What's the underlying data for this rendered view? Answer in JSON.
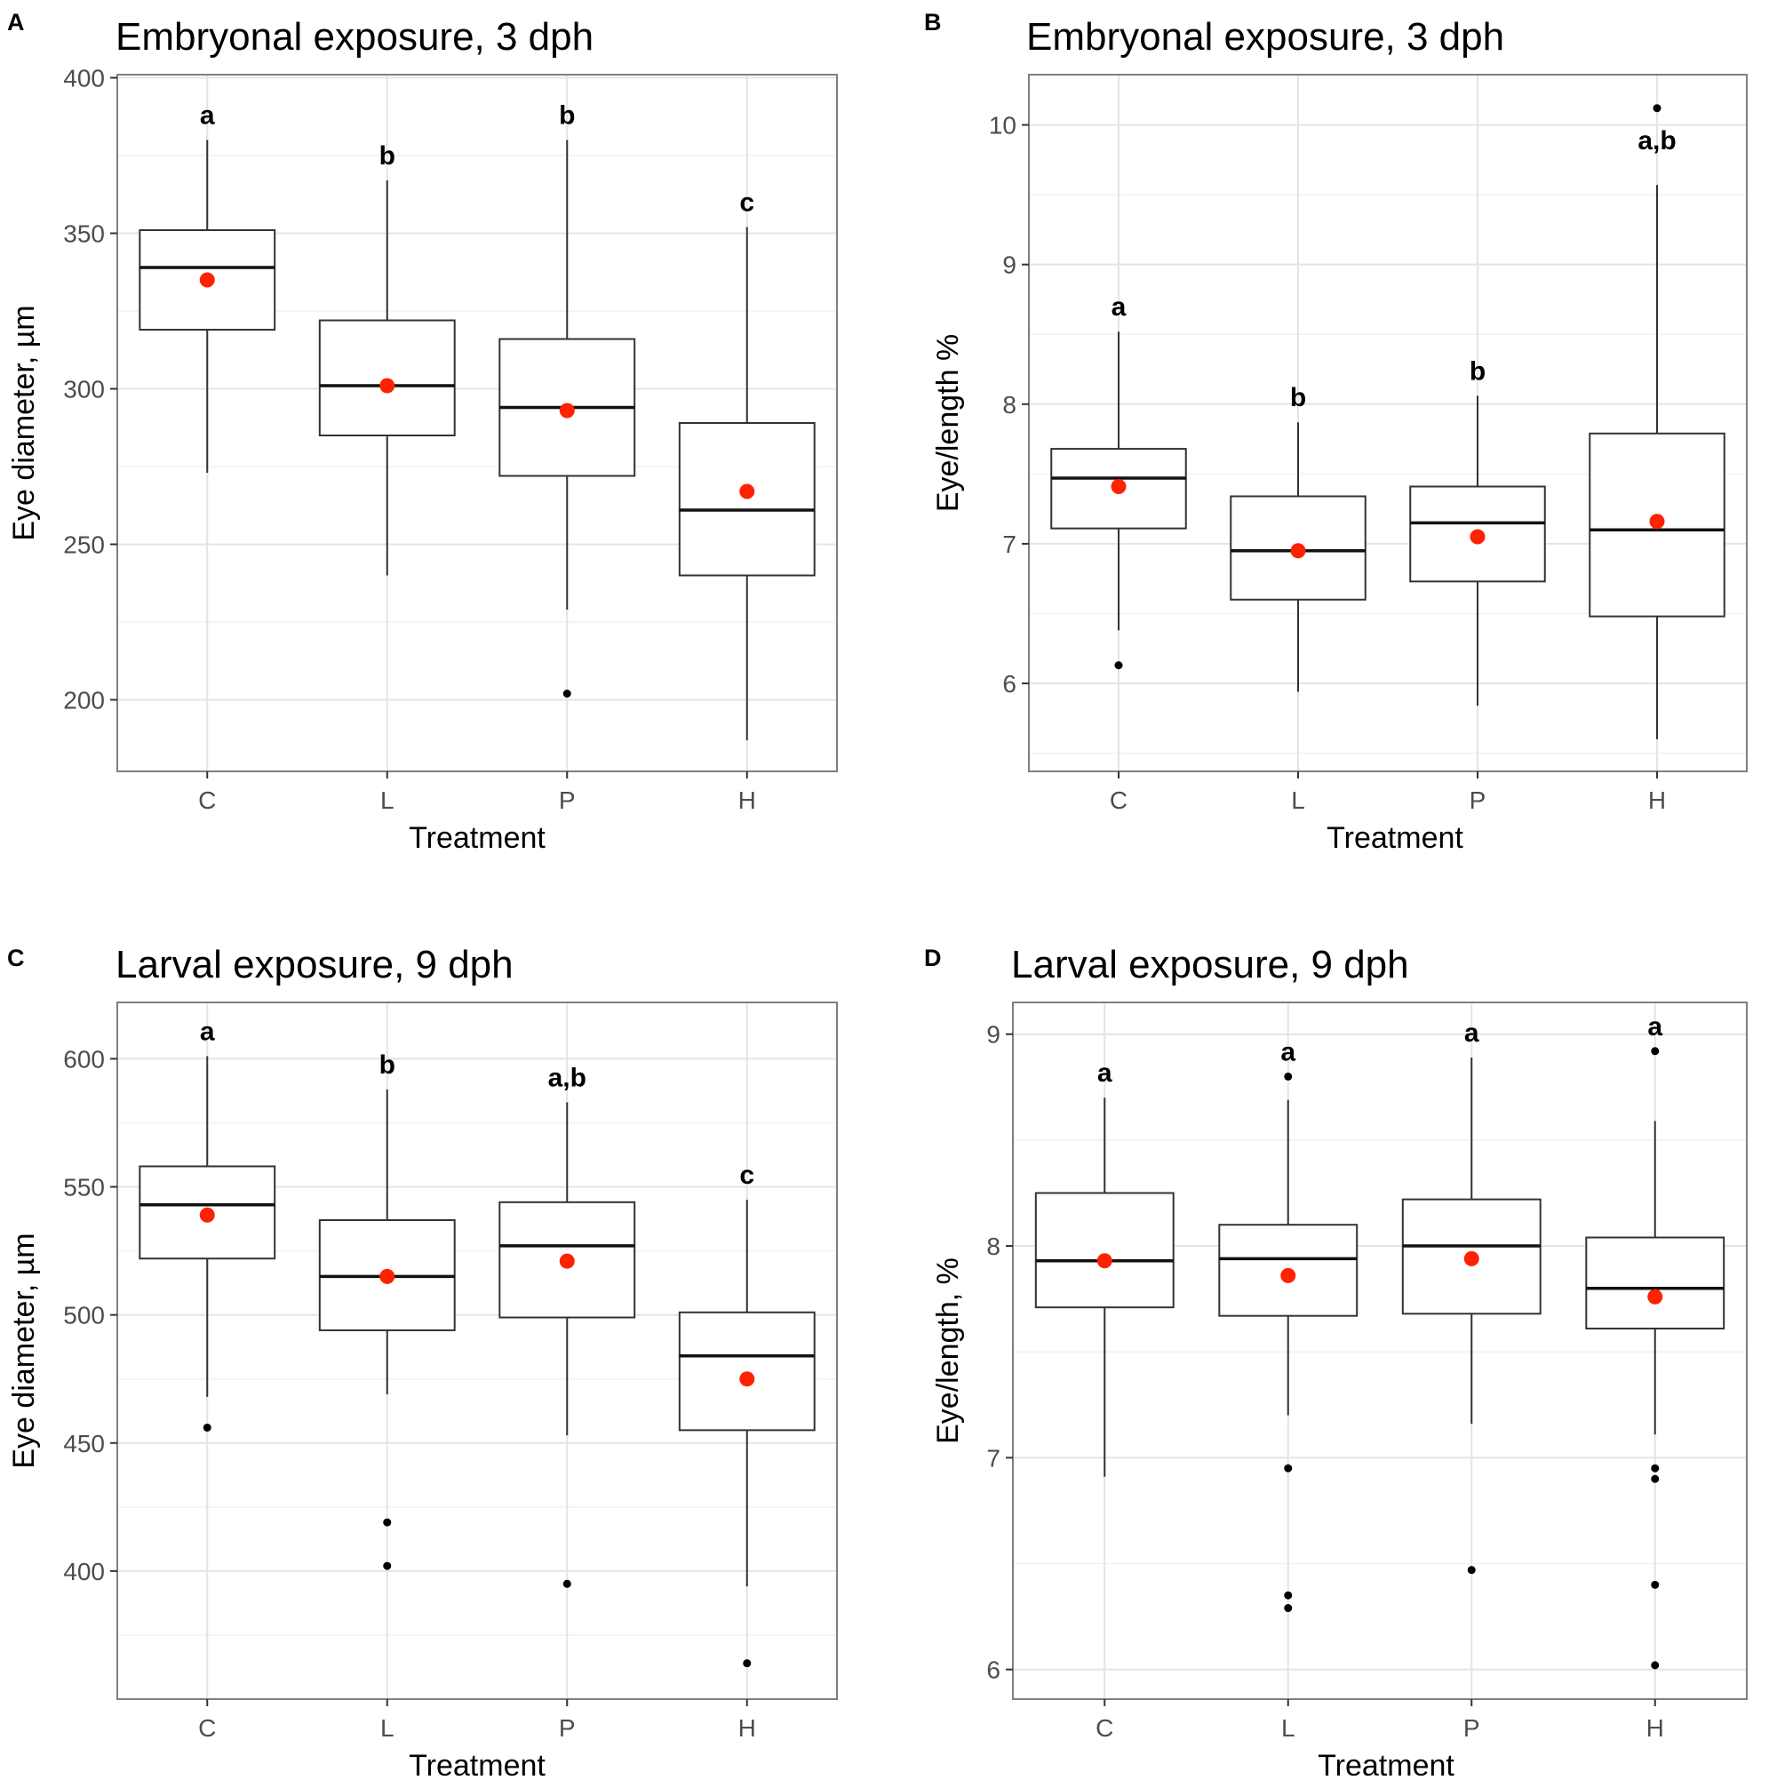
{
  "chart_data": [
    {
      "type": "box",
      "panel": "A",
      "title": "Embryonal exposure, 3 dph",
      "xlabel": "Treatment",
      "ylabel": "Eye diameter, µm",
      "categories": [
        "C",
        "L",
        "P",
        "H"
      ],
      "ylim": [
        177,
        401
      ],
      "yticks": [
        200,
        250,
        300,
        350,
        400
      ],
      "grid": true,
      "series": [
        {
          "name": "C",
          "whisker_low": 273,
          "q1": 319,
          "median": 339,
          "q3": 351,
          "whisker_high": 380,
          "mean": 335,
          "outliers": [],
          "letter": "a"
        },
        {
          "name": "L",
          "whisker_low": 240,
          "q1": 285,
          "median": 301,
          "q3": 322,
          "whisker_high": 367,
          "mean": 301,
          "outliers": [],
          "letter": "b"
        },
        {
          "name": "P",
          "whisker_low": 229,
          "q1": 272,
          "median": 294,
          "q3": 316,
          "whisker_high": 380,
          "mean": 293,
          "outliers": [
            202
          ],
          "letter": "b"
        },
        {
          "name": "H",
          "whisker_low": 187,
          "q1": 240,
          "median": 261,
          "q3": 289,
          "whisker_high": 352,
          "mean": 267,
          "outliers": [],
          "letter": "c"
        }
      ]
    },
    {
      "type": "box",
      "panel": "B",
      "title": "Embryonal exposure, 3 dph",
      "xlabel": "Treatment",
      "ylabel": "Eye/length %",
      "categories": [
        "C",
        "L",
        "P",
        "H"
      ],
      "ylim": [
        5.37,
        10.36
      ],
      "yticks": [
        6,
        7,
        8,
        9,
        10
      ],
      "grid": true,
      "series": [
        {
          "name": "C",
          "whisker_low": 6.38,
          "q1": 7.11,
          "median": 7.47,
          "q3": 7.68,
          "whisker_high": 8.52,
          "mean": 7.41,
          "outliers": [
            6.13
          ],
          "letter": "a"
        },
        {
          "name": "L",
          "whisker_low": 5.94,
          "q1": 6.6,
          "median": 6.95,
          "q3": 7.34,
          "whisker_high": 7.87,
          "mean": 6.95,
          "outliers": [],
          "letter": "b"
        },
        {
          "name": "P",
          "whisker_low": 5.84,
          "q1": 6.73,
          "median": 7.15,
          "q3": 7.41,
          "whisker_high": 8.06,
          "mean": 7.05,
          "outliers": [],
          "letter": "b"
        },
        {
          "name": "H",
          "whisker_low": 5.6,
          "q1": 6.48,
          "median": 7.1,
          "q3": 7.79,
          "whisker_high": 9.57,
          "mean": 7.16,
          "outliers": [
            10.12
          ],
          "letter": "a,b"
        }
      ]
    },
    {
      "type": "box",
      "panel": "C",
      "title": "Larval exposure, 9 dph",
      "xlabel": "Treatment",
      "ylabel": "Eye diameter, µm",
      "categories": [
        "C",
        "L",
        "P",
        "H"
      ],
      "ylim": [
        350,
        622
      ],
      "yticks": [
        400,
        450,
        500,
        550,
        600
      ],
      "grid": true,
      "series": [
        {
          "name": "C",
          "whisker_low": 468,
          "q1": 522,
          "median": 543,
          "q3": 558,
          "whisker_high": 601,
          "mean": 539,
          "outliers": [
            456
          ],
          "letter": "a"
        },
        {
          "name": "L",
          "whisker_low": 469,
          "q1": 494,
          "median": 515,
          "q3": 537,
          "whisker_high": 588,
          "mean": 515,
          "outliers": [
            419,
            402
          ],
          "letter": "b"
        },
        {
          "name": "P",
          "whisker_low": 453,
          "q1": 499,
          "median": 527,
          "q3": 544,
          "whisker_high": 583,
          "mean": 521,
          "outliers": [
            395
          ],
          "letter": "a,b"
        },
        {
          "name": "H",
          "whisker_low": 394,
          "q1": 455,
          "median": 484,
          "q3": 501,
          "whisker_high": 545,
          "mean": 475,
          "outliers": [
            364
          ],
          "letter": "c"
        }
      ]
    },
    {
      "type": "box",
      "panel": "D",
      "title": "Larval exposure, 9 dph",
      "xlabel": "Treatment",
      "ylabel": "Eye/length, %",
      "categories": [
        "C",
        "L",
        "P",
        "H"
      ],
      "ylim": [
        5.86,
        9.15
      ],
      "yticks": [
        6,
        7,
        8,
        9
      ],
      "grid": true,
      "series": [
        {
          "name": "C",
          "whisker_low": 6.91,
          "q1": 7.71,
          "median": 7.93,
          "q3": 8.25,
          "whisker_high": 8.7,
          "mean": 7.93,
          "outliers": [],
          "letter": "a"
        },
        {
          "name": "L",
          "whisker_low": 7.2,
          "q1": 7.67,
          "median": 7.94,
          "q3": 8.1,
          "whisker_high": 8.69,
          "mean": 7.86,
          "outliers": [
            8.8,
            6.95,
            6.35,
            6.29
          ],
          "letter": "a"
        },
        {
          "name": "P",
          "whisker_low": 7.16,
          "q1": 7.68,
          "median": 8.0,
          "q3": 8.22,
          "whisker_high": 8.89,
          "mean": 7.94,
          "outliers": [
            6.47
          ],
          "letter": "a"
        },
        {
          "name": "H",
          "whisker_low": 7.11,
          "q1": 7.61,
          "median": 7.8,
          "q3": 8.04,
          "whisker_high": 8.59,
          "mean": 7.76,
          "outliers": [
            8.92,
            6.95,
            6.9,
            6.4,
            6.02
          ],
          "letter": "a"
        }
      ]
    }
  ],
  "colors": {
    "mean": "#ff2200",
    "box_stroke": "#333333",
    "median": "#111111",
    "grid_major": "#e4e4e4",
    "grid_minor": "#f1f1f1",
    "panel_border": "#7f7f7f",
    "outlier": "#000000"
  }
}
